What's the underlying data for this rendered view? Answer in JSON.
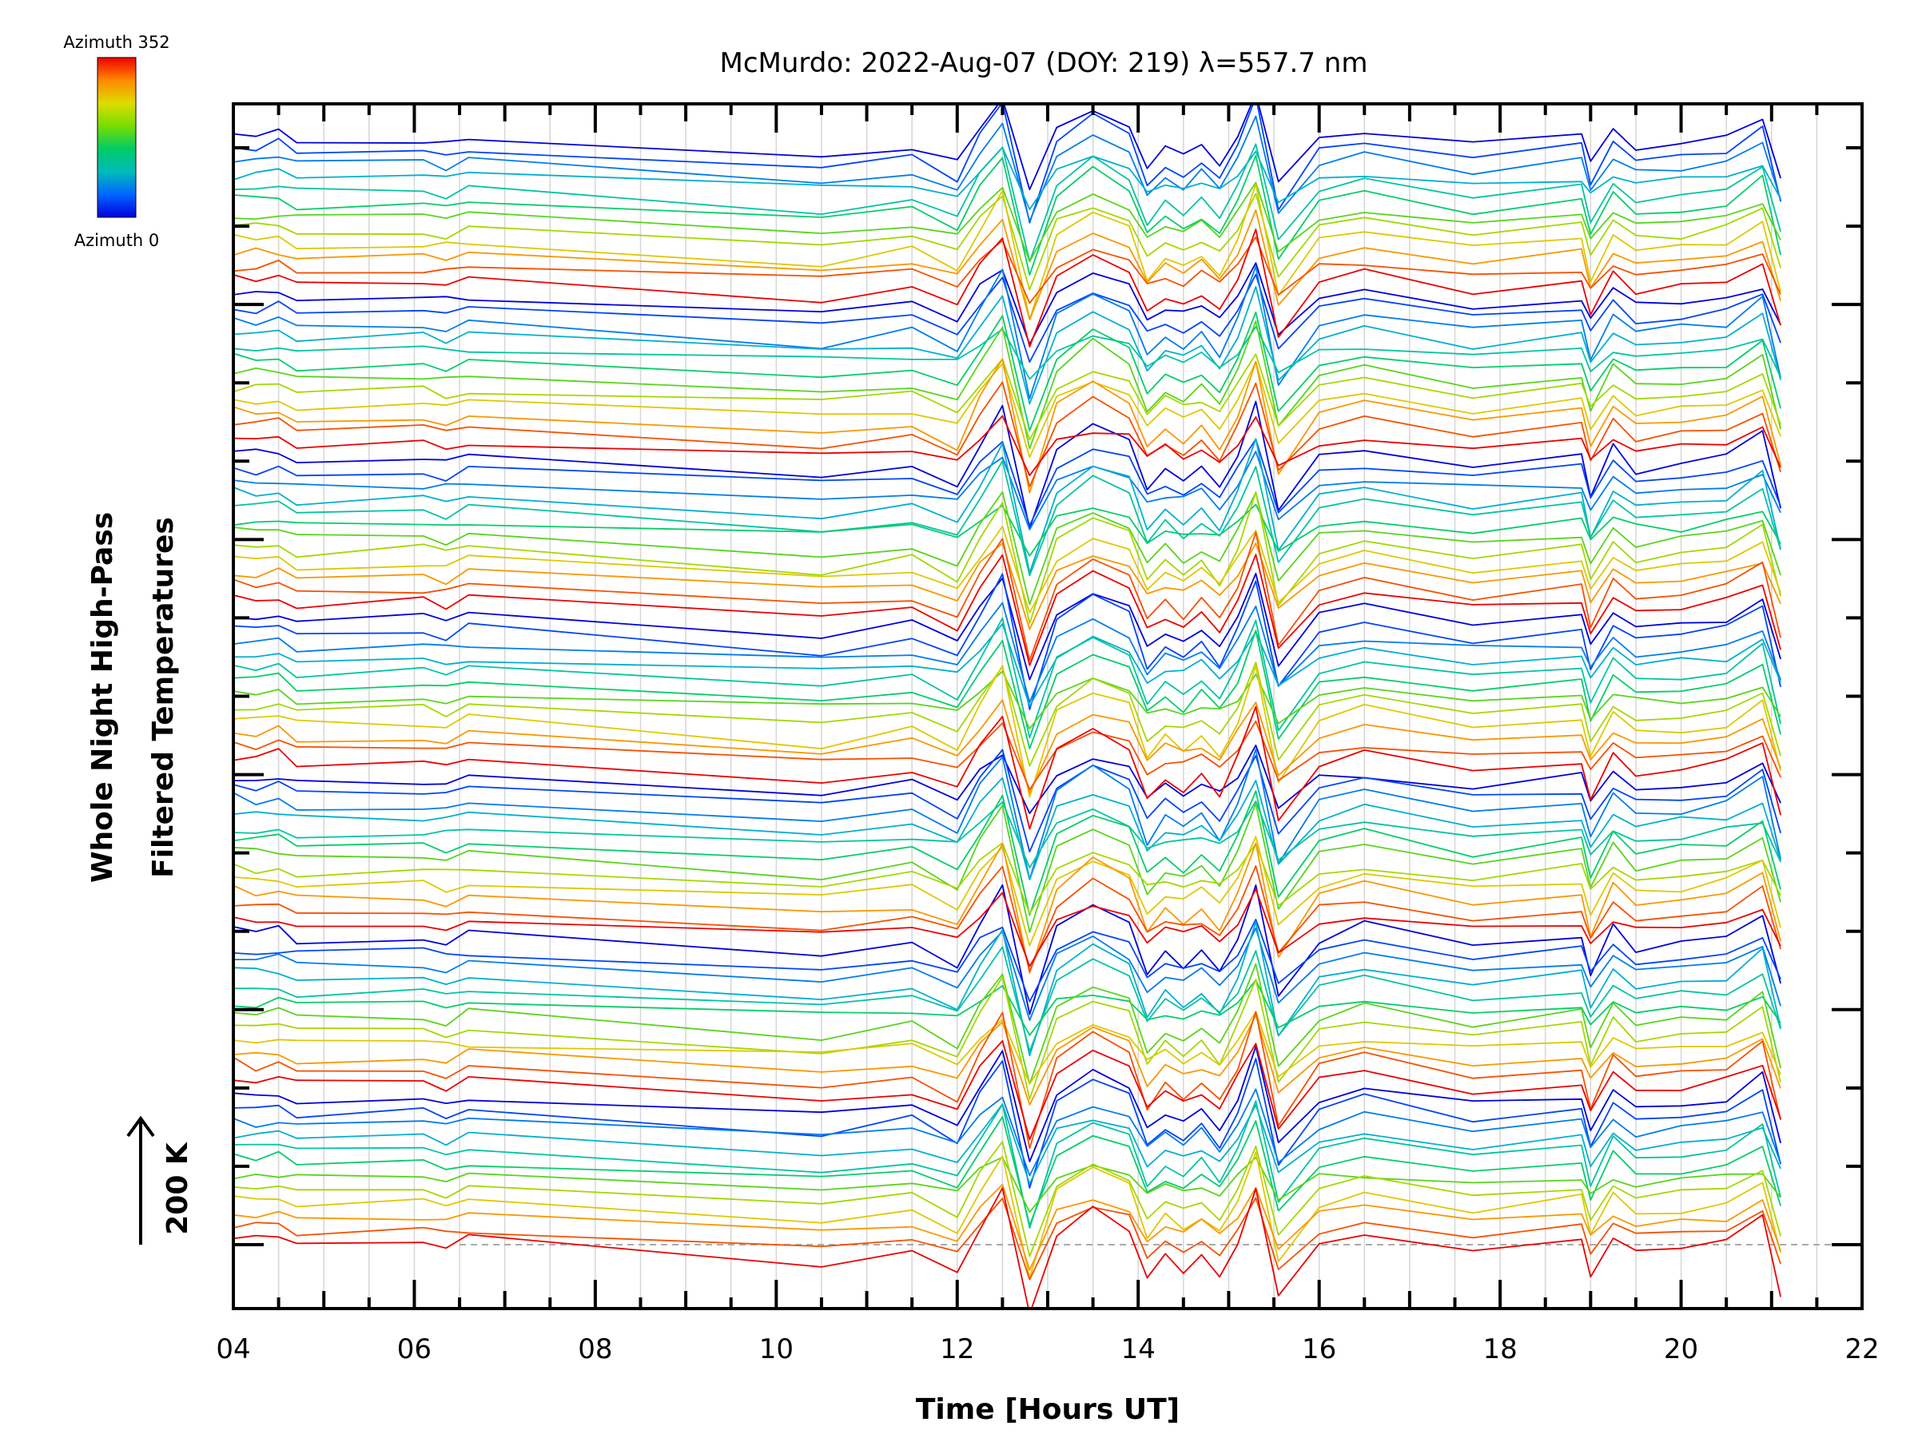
{
  "chart_data": {
    "type": "line",
    "title": "McMurdo: 2022-Aug-07 (DOY: 219) λ=557.7 nm",
    "xlabel": "Time [Hours UT]",
    "ylabel_line1": "Whole Night High-Pass",
    "ylabel_line2": "Filtered Temperatures",
    "scale_label": "200 K",
    "xlim": [
      4,
      22
    ],
    "x_ticks": [
      "04",
      "06",
      "08",
      "10",
      "12",
      "14",
      "16",
      "18",
      "20",
      "22"
    ],
    "y_ticks_count": 15,
    "colorbar": {
      "top_label": "Azimuth 352",
      "bottom_label": "Azimuth 0",
      "colors": [
        "#ee0000",
        "#ff8800",
        "#dddd00",
        "#77dd00",
        "#00cc66",
        "#00bbbb",
        "#0066ff",
        "#0000dd"
      ]
    },
    "n_groups": 7,
    "traces_per_group": 12,
    "time_points": [
      4.0,
      4.25,
      4.5,
      4.7,
      6.1,
      6.35,
      6.6,
      10.5,
      11.5,
      12.0,
      12.25,
      12.5,
      12.8,
      13.1,
      13.5,
      13.9,
      14.1,
      14.3,
      14.5,
      14.7,
      14.9,
      15.1,
      15.3,
      15.55,
      16.0,
      16.5,
      17.7,
      18.9,
      19.0,
      19.25,
      19.5,
      20.0,
      20.5,
      20.9,
      21.1
    ],
    "base_anomaly": [
      0.3,
      0.2,
      0.35,
      0.0,
      0.1,
      -0.1,
      0.2,
      -0.6,
      -0.2,
      -0.9,
      0.6,
      1.8,
      -2.4,
      0.4,
      1.2,
      0.6,
      -1.1,
      -0.4,
      -0.8,
      -0.3,
      -1.0,
      0.2,
      1.9,
      -1.8,
      0.1,
      0.5,
      -0.2,
      0.2,
      -1.1,
      0.4,
      -0.3,
      -0.1,
      0.1,
      0.9,
      -1.6
    ]
  }
}
